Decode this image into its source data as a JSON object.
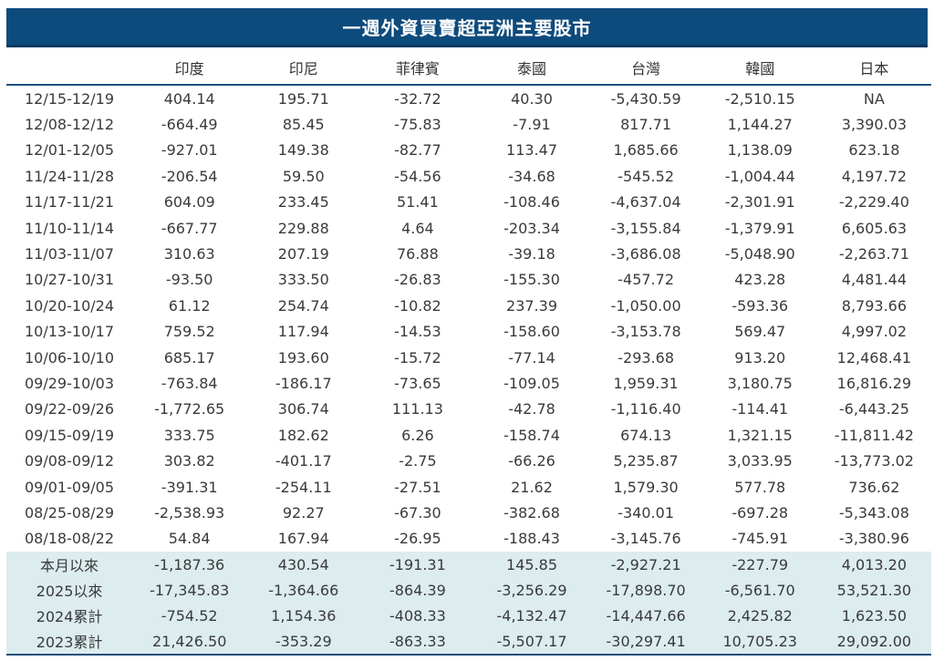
{
  "title": "一週外資買賣超亞洲主要股市",
  "columns": [
    "",
    "印度",
    "印尼",
    "菲律賓",
    "泰國",
    "台灣",
    "韓國",
    "日本"
  ],
  "rows": [
    [
      "12/15-12/19",
      "404.14",
      "195.71",
      "-32.72",
      "40.30",
      "-5,430.59",
      "-2,510.15",
      "NA"
    ],
    [
      "12/08-12/12",
      "-664.49",
      "85.45",
      "-75.83",
      "-7.91",
      "817.71",
      "1,144.27",
      "3,390.03"
    ],
    [
      "12/01-12/05",
      "-927.01",
      "149.38",
      "-82.77",
      "113.47",
      "1,685.66",
      "1,138.09",
      "623.18"
    ],
    [
      "11/24-11/28",
      "-206.54",
      "59.50",
      "-54.56",
      "-34.68",
      "-545.52",
      "-1,004.44",
      "4,197.72"
    ],
    [
      "11/17-11/21",
      "604.09",
      "233.45",
      "51.41",
      "-108.46",
      "-4,637.04",
      "-2,301.91",
      "-2,229.40"
    ],
    [
      "11/10-11/14",
      "-667.77",
      "229.88",
      "4.64",
      "-203.34",
      "-3,155.84",
      "-1,379.91",
      "6,605.63"
    ],
    [
      "11/03-11/07",
      "310.63",
      "207.19",
      "76.88",
      "-39.18",
      "-3,686.08",
      "-5,048.90",
      "-2,263.71"
    ],
    [
      "10/27-10/31",
      "-93.50",
      "333.50",
      "-26.83",
      "-155.30",
      "-457.72",
      "423.28",
      "4,481.44"
    ],
    [
      "10/20-10/24",
      "61.12",
      "254.74",
      "-10.82",
      "237.39",
      "-1,050.00",
      "-593.36",
      "8,793.66"
    ],
    [
      "10/13-10/17",
      "759.52",
      "117.94",
      "-14.53",
      "-158.60",
      "-3,153.78",
      "569.47",
      "4,997.02"
    ],
    [
      "10/06-10/10",
      "685.17",
      "193.60",
      "-15.72",
      "-77.14",
      "-293.68",
      "913.20",
      "12,468.41"
    ],
    [
      "09/29-10/03",
      "-763.84",
      "-186.17",
      "-73.65",
      "-109.05",
      "1,959.31",
      "3,180.75",
      "16,816.29"
    ],
    [
      "09/22-09/26",
      "-1,772.65",
      "306.74",
      "111.13",
      "-42.78",
      "-1,116.40",
      "-114.41",
      "-6,443.25"
    ],
    [
      "09/15-09/19",
      "333.75",
      "182.62",
      "6.26",
      "-158.74",
      "674.13",
      "1,321.15",
      "-11,811.42"
    ],
    [
      "09/08-09/12",
      "303.82",
      "-401.17",
      "-2.75",
      "-66.26",
      "5,235.87",
      "3,033.95",
      "-13,773.02"
    ],
    [
      "09/01-09/05",
      "-391.31",
      "-254.11",
      "-27.51",
      "21.62",
      "1,579.30",
      "577.78",
      "736.62"
    ],
    [
      "08/25-08/29",
      "-2,538.93",
      "92.27",
      "-67.30",
      "-382.68",
      "-340.01",
      "-697.28",
      "-5,343.08"
    ],
    [
      "08/18-08/22",
      "54.84",
      "167.94",
      "-26.95",
      "-188.43",
      "-3,145.76",
      "-745.91",
      "-3,380.96"
    ]
  ],
  "summary_rows": [
    [
      "本月以來",
      "-1,187.36",
      "430.54",
      "-191.31",
      "145.85",
      "-2,927.21",
      "-227.79",
      "4,013.20"
    ],
    [
      "2025以來",
      "-17,345.83",
      "-1,364.66",
      "-864.39",
      "-3,256.29",
      "-17,898.70",
      "-6,561.70",
      "53,521.30"
    ],
    [
      "2024累計",
      "-754.52",
      "1,154.36",
      "-408.33",
      "-4,132.47",
      "-14,447.66",
      "2,425.82",
      "1,623.50"
    ],
    [
      "2023累計",
      "21,426.50",
      "-353.29",
      "-863.33",
      "-5,507.17",
      "-30,297.41",
      "10,705.23",
      "29,092.00"
    ]
  ],
  "colors": {
    "title_bg": "#0e4b7d",
    "summary_bg": "#dcecef",
    "rule": "#1f4f7a"
  }
}
